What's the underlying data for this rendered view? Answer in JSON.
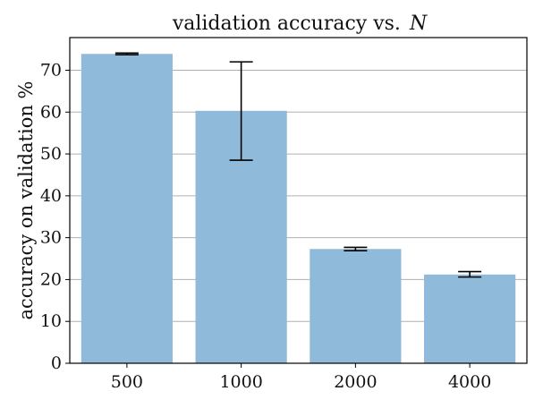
{
  "chart_data": {
    "type": "bar",
    "title": "validation accuracy vs.",
    "title_variable": "N",
    "xlabel": "",
    "ylabel": "accuracy on validation %",
    "categories": [
      "500",
      "1000",
      "2000",
      "4000"
    ],
    "values": [
      73.9,
      60.3,
      27.3,
      21.2
    ],
    "error_bars": [
      {
        "low": 73.7,
        "high": 74.1
      },
      {
        "low": 48.5,
        "high": 72.0
      },
      {
        "low": 26.9,
        "high": 27.7
      },
      {
        "low": 20.6,
        "high": 21.9
      }
    ],
    "ylim": [
      0,
      77.8
    ],
    "yticks": [
      0,
      10,
      20,
      30,
      40,
      50,
      60,
      70
    ],
    "grid": "y",
    "bar_color": "#8fbad9",
    "errorbar_color": "#000000"
  }
}
